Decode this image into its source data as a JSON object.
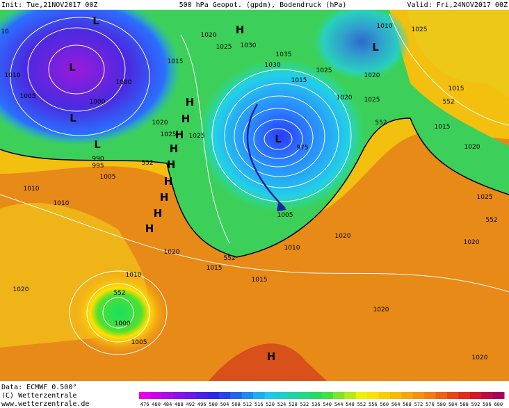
{
  "header": {
    "init": "Init: Tue,21NOV2017 00Z",
    "title": "500 hPa Geopot. (gpdm), Bodendruck (hPa)",
    "valid": "Valid: Fri,24NOV2017 00Z"
  },
  "footer": {
    "data": "Data: ECMWF  0.500°",
    "copyright": "(C) Wetterzentrale",
    "url": "www.wetterzentrale.de"
  },
  "colorbar": {
    "labels": [
      "476",
      "480",
      "484",
      "488",
      "492",
      "496",
      "500",
      "504",
      "508",
      "512",
      "516",
      "520",
      "524",
      "528",
      "532",
      "536",
      "540",
      "544",
      "548",
      "552",
      "556",
      "560",
      "564",
      "568",
      "572",
      "576",
      "580",
      "584",
      "588",
      "592",
      "596",
      "600"
    ]
  },
  "map_labels": [
    "L",
    "L",
    "L",
    "L",
    "L",
    "L",
    "H",
    "H",
    "H",
    "H",
    "H",
    "H",
    "H",
    "H",
    "H",
    "H",
    "H",
    "1020",
    "1025",
    "1030",
    "1035",
    "1030",
    "1015",
    "1010",
    "1005",
    "1000",
    "1000",
    "1020",
    "1025",
    "1025",
    "990",
    "995",
    "1005",
    "1010",
    "1010",
    "1015",
    "1015",
    "1020",
    "1020",
    "1010",
    "1000",
    "1005",
    "1015",
    "1010",
    "1005",
    "975",
    "1020",
    "1025",
    "1020",
    "1025",
    "1010",
    "1025",
    "1015",
    "1015",
    "1020",
    "1025",
    "1020",
    "1020",
    "1020",
    "1020",
    "10",
    "552",
    "552",
    "552",
    "552",
    "552",
    "552"
  ]
}
